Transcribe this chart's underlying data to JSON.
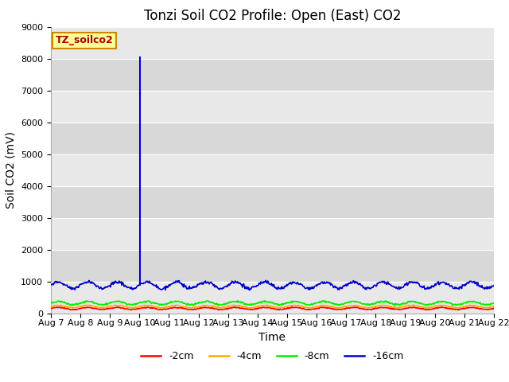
{
  "title": "Tonzi Soil CO2 Profile: Open (East) CO2",
  "ylabel": "Soil CO2 (mV)",
  "xlabel": "Time",
  "ylim": [
    0,
    9000
  ],
  "yticks": [
    0,
    1000,
    2000,
    3000,
    4000,
    5000,
    6000,
    7000,
    8000,
    9000
  ],
  "num_points": 720,
  "spike_day": 3.0,
  "spike_value": 8050,
  "lines": {
    "-2cm": {
      "color": "#ff0000",
      "base": 150,
      "amp": 30,
      "freq": 1.0
    },
    "-4cm": {
      "color": "#ffaa00",
      "base": 210,
      "amp": 35,
      "freq": 1.0
    },
    "-8cm": {
      "color": "#00ee00",
      "base": 320,
      "amp": 50,
      "freq": 1.0
    },
    "-16cm": {
      "color": "#0000cc",
      "base": 880,
      "amp": 100,
      "freq": 1.0
    }
  },
  "bg_color": "#d8d8d8",
  "stripe_color": "#e8e8e8",
  "box_label": "TZ_soilco2",
  "box_bg": "#ffff99",
  "box_text_color": "#aa0000",
  "box_edge_color": "#cc8800",
  "xtick_labels": [
    "Aug 7",
    "Aug 8",
    "Aug 9",
    "Aug 10",
    "Aug 11",
    "Aug 12",
    "Aug 13",
    "Aug 14",
    "Aug 15",
    "Aug 16",
    "Aug 17",
    "Aug 18",
    "Aug 19",
    "Aug 20",
    "Aug 21",
    "Aug 22"
  ],
  "title_fontsize": 12,
  "axis_fontsize": 10,
  "tick_fontsize": 8,
  "legend_fontsize": 9,
  "spike_color": "#0000cc",
  "spike_linewidth": 1.5
}
